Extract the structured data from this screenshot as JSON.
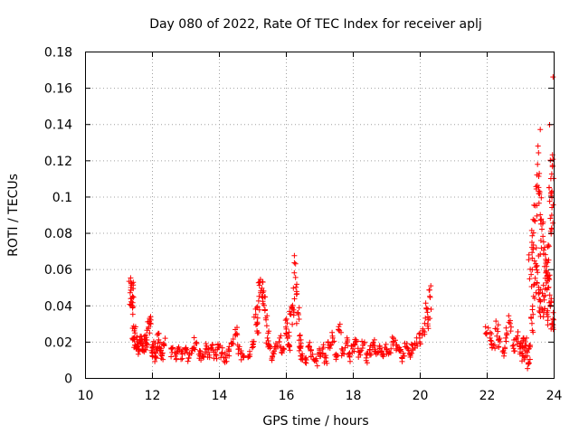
{
  "chart_data": {
    "type": "scatter",
    "title": "Day 080 of 2022, Rate Of TEC Index for receiver aplj",
    "xlabel": "GPS time / hours",
    "ylabel": "ROTI / TECUs",
    "xlim": [
      10,
      24
    ],
    "ylim": [
      0,
      0.18
    ],
    "xticks": [
      "10",
      "12",
      "14",
      "16",
      "18",
      "20",
      "22",
      "24"
    ],
    "yticks": [
      "0",
      "0.02",
      "0.04",
      "0.06",
      "0.08",
      "0.1",
      "0.12",
      "0.14",
      "0.16",
      "0.18"
    ],
    "grid": true,
    "marker": "+",
    "color": "#ff0000",
    "series": [
      {
        "name": "ROTI",
        "x": [
          11.35,
          11.4,
          11.45,
          11.5,
          11.55,
          11.6,
          11.65,
          11.7,
          11.75,
          11.8,
          11.85,
          11.9,
          11.95,
          12.0,
          12.05,
          12.1,
          12.15,
          12.2,
          12.25,
          12.3,
          12.35,
          11.38,
          11.42,
          11.47,
          12.6,
          12.7,
          12.8,
          12.9,
          13.0,
          13.1,
          13.2,
          13.3,
          13.4,
          13.5,
          13.6,
          13.7,
          13.8,
          13.9,
          14.0,
          14.1,
          14.2,
          14.3,
          14.4,
          14.5,
          14.6,
          14.7,
          14.9,
          15.0,
          15.1,
          15.15,
          15.2,
          15.25,
          15.3,
          15.35,
          15.4,
          15.45,
          15.5,
          15.6,
          15.7,
          15.8,
          15.9,
          16.0,
          16.05,
          16.1,
          16.15,
          16.2,
          16.25,
          16.3,
          16.35,
          16.4,
          16.45,
          16.5,
          16.6,
          16.7,
          16.8,
          16.9,
          17.0,
          17.1,
          17.2,
          17.3,
          17.4,
          17.5,
          17.6,
          17.7,
          17.8,
          17.9,
          18.0,
          18.1,
          18.2,
          18.3,
          18.4,
          18.5,
          18.6,
          18.7,
          18.8,
          18.9,
          19.0,
          19.1,
          19.2,
          19.3,
          19.4,
          19.5,
          19.6,
          19.7,
          19.8,
          19.9,
          20.0,
          20.1,
          20.2,
          20.3,
          20.25,
          22.0,
          22.1,
          22.2,
          22.3,
          22.4,
          22.5,
          22.6,
          22.7,
          22.8,
          22.9,
          23.0,
          23.05,
          23.1,
          23.15,
          23.2,
          23.25,
          23.3,
          23.35,
          23.4,
          23.45,
          23.5,
          23.55,
          23.6,
          23.65,
          23.7,
          23.75,
          23.8,
          23.85,
          23.9,
          23.95,
          24.0,
          23.4,
          23.45,
          23.5,
          23.55,
          23.6,
          23.65,
          23.7,
          23.75,
          23.8,
          23.85,
          23.9,
          23.95,
          24.0,
          23.3,
          23.35,
          23.9,
          23.95
        ],
        "y": [
          0.047,
          0.044,
          0.022,
          0.018,
          0.02,
          0.016,
          0.023,
          0.019,
          0.015,
          0.021,
          0.017,
          0.028,
          0.03,
          0.014,
          0.018,
          0.012,
          0.016,
          0.021,
          0.015,
          0.013,
          0.019,
          0.042,
          0.045,
          0.026,
          0.014,
          0.012,
          0.017,
          0.013,
          0.016,
          0.011,
          0.015,
          0.019,
          0.013,
          0.012,
          0.016,
          0.014,
          0.018,
          0.013,
          0.017,
          0.014,
          0.011,
          0.015,
          0.019,
          0.024,
          0.016,
          0.013,
          0.012,
          0.02,
          0.035,
          0.03,
          0.045,
          0.048,
          0.053,
          0.04,
          0.033,
          0.022,
          0.018,
          0.012,
          0.016,
          0.02,
          0.015,
          0.028,
          0.022,
          0.018,
          0.035,
          0.04,
          0.058,
          0.05,
          0.036,
          0.015,
          0.021,
          0.012,
          0.01,
          0.017,
          0.013,
          0.009,
          0.014,
          0.016,
          0.011,
          0.018,
          0.022,
          0.013,
          0.026,
          0.015,
          0.019,
          0.012,
          0.016,
          0.021,
          0.014,
          0.018,
          0.011,
          0.015,
          0.019,
          0.013,
          0.017,
          0.012,
          0.016,
          0.014,
          0.02,
          0.018,
          0.015,
          0.012,
          0.017,
          0.013,
          0.016,
          0.019,
          0.022,
          0.026,
          0.038,
          0.045,
          0.032,
          0.025,
          0.022,
          0.018,
          0.027,
          0.02,
          0.015,
          0.024,
          0.03,
          0.018,
          0.022,
          0.016,
          0.019,
          0.012,
          0.02,
          0.015,
          0.008,
          0.018,
          0.03,
          0.045,
          0.055,
          0.062,
          0.05,
          0.042,
          0.038,
          0.045,
          0.055,
          0.035,
          0.05,
          0.04,
          0.03,
          0.032,
          0.08,
          0.095,
          0.112,
          0.105,
          0.09,
          0.082,
          0.075,
          0.068,
          0.058,
          0.065,
          0.088,
          0.094,
          0.11,
          0.06,
          0.072,
          0.12,
          0.103
        ],
        "outliers": [
          [
            23.6,
            0.137
          ],
          [
            23.98,
            0.166
          ]
        ]
      }
    ]
  }
}
